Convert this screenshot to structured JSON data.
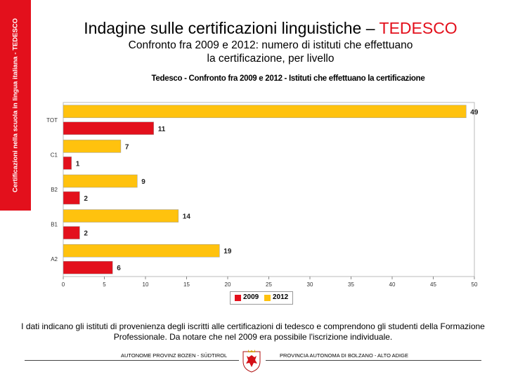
{
  "sidebar": {
    "label": "Certificazioni nella scuola in lingua italiana - TEDESCO"
  },
  "header": {
    "title_prefix": "Indagine sulle certificazioni linguistiche – ",
    "title_accent": "TEDESCO"
  },
  "subtitle": {
    "line1": "Confronto fra 2009 e 2012: numero di istituti che effettuano",
    "line2": "la certificazione, per livello"
  },
  "note": {
    "text": "I dati indicano gli istituti di provenienza degli iscritti alle certificazioni di tedesco e comprendono gli studenti della Formazione Professionale. Da notare che nel 2009 era possibile l'iscrizione individuale."
  },
  "footer": {
    "left": "AUTONOME PROVINZ BOZEN - SÜDTIROL",
    "right": "PROVINCIA AUTONOMA DI BOLZANO - ALTO ADIGE"
  },
  "colors": {
    "accent": "#e3101c",
    "series_2009": "#e3101c",
    "series_2012": "#ffc20e"
  },
  "chart_data": {
    "type": "bar",
    "orientation": "horizontal",
    "title": "Tedesco - Confronto fra 2009 e 2012 - Istituti che effettuano la certificazione",
    "categories": [
      "TOT",
      "C1",
      "B2",
      "B1",
      "A2"
    ],
    "series": [
      {
        "name": "2012",
        "values": [
          49,
          7,
          9,
          14,
          19
        ]
      },
      {
        "name": "2009",
        "values": [
          11,
          1,
          2,
          2,
          6
        ]
      }
    ],
    "xlim": [
      0,
      50
    ],
    "xticks": [
      0,
      5,
      10,
      15,
      20,
      25,
      30,
      35,
      40,
      45,
      50
    ],
    "legend": [
      "2009",
      "2012"
    ],
    "legend_position": "bottom"
  }
}
